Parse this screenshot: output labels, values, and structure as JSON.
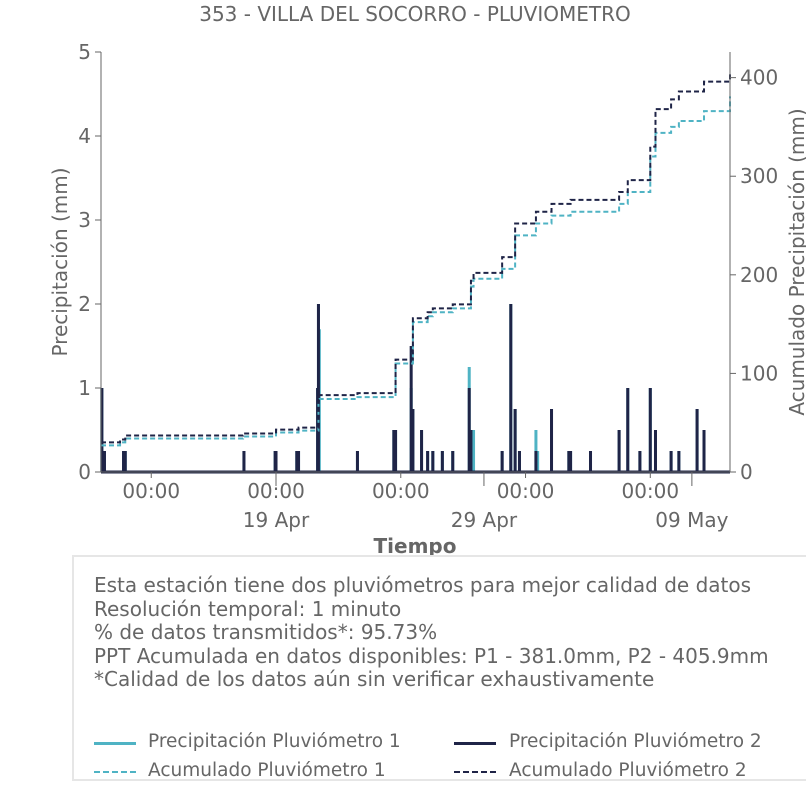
{
  "colors": {
    "p1": "#4fb3c4",
    "p2": "#1f2447",
    "text": "#666666",
    "box_border": "#e6e6e6"
  },
  "chart_data": {
    "type": "line",
    "title": "353 - VILLA DEL SOCORRO - PLUVIOMETRO",
    "xlabel": "Tiempo",
    "ylabel": "Precipitación (mm)",
    "y2label": "Acumulado Precipitación (mm)",
    "ylim": [
      0,
      5
    ],
    "y2lim": [
      0,
      426
    ],
    "xlim": [
      "2025-04-10 14:00",
      "2025-05-10 20:00"
    ],
    "yticks": [
      "0",
      "1",
      "2",
      "3",
      "4",
      "5"
    ],
    "y2ticks": [
      "0",
      "100",
      "200",
      "300",
      "400"
    ],
    "xticks_major": [
      "00:00",
      "00:00",
      "00:00",
      "00:00",
      "00:00"
    ],
    "xticks_major_dates": [
      "2025-04-13 00:00",
      "2025-04-19 00:00",
      "2025-04-25 00:00",
      "2025-05-01 00:00",
      "2025-05-07 00:00"
    ],
    "xticks_minor": [
      "19 Apr",
      "29 Apr",
      "09 May"
    ],
    "xticks_minor_dates": [
      "2025-04-19 00:00",
      "2025-04-29 00:00",
      "2025-05-09 00:00"
    ],
    "grid": false,
    "legend": "bottom",
    "series": [
      {
        "name": "Precipitación Pluviómetro 1",
        "axis": "left",
        "style": "solid",
        "points": [
          [
            "2025-04-10 15:00",
            1.0
          ],
          [
            "2025-04-10 18:00",
            0.25
          ],
          [
            "2025-04-11 16:00",
            0.25
          ],
          [
            "2025-04-11 18:00",
            0.25
          ],
          [
            "2025-04-17 11:00",
            0.25
          ],
          [
            "2025-04-18 23:00",
            0.25
          ],
          [
            "2025-04-19 00:00",
            0.25
          ],
          [
            "2025-04-20 00:00",
            0.25
          ],
          [
            "2025-04-20 02:00",
            0.25
          ],
          [
            "2025-04-21 00:00",
            1.0
          ],
          [
            "2025-04-21 01:00",
            2.0
          ],
          [
            "2025-04-21 02:00",
            1.7
          ],
          [
            "2025-04-22 22:00",
            0.25
          ],
          [
            "2025-04-24 16:00",
            0.5
          ],
          [
            "2025-04-24 18:00",
            0.5
          ],
          [
            "2025-04-25 12:00",
            1.0
          ],
          [
            "2025-04-25 14:00",
            0.75
          ],
          [
            "2025-04-26 00:00",
            0.5
          ],
          [
            "2025-04-26 07:00",
            0.25
          ],
          [
            "2025-04-26 13:00",
            0.25
          ],
          [
            "2025-04-27 00:00",
            0.25
          ],
          [
            "2025-04-27 12:00",
            0.25
          ],
          [
            "2025-04-28 07:00",
            1.25
          ],
          [
            "2025-04-28 09:00",
            0.5
          ],
          [
            "2025-04-28 12:00",
            0.5
          ],
          [
            "2025-04-29 21:00",
            0.25
          ],
          [
            "2025-04-30 07:00",
            2.0
          ],
          [
            "2025-04-30 12:00",
            0.75
          ],
          [
            "2025-04-30 17:00",
            0.25
          ],
          [
            "2025-05-01 12:00",
            0.5
          ],
          [
            "2025-05-01 14:00",
            0.25
          ],
          [
            "2025-05-02 06:00",
            0.75
          ],
          [
            "2025-05-03 02:00",
            0.25
          ],
          [
            "2025-05-03 04:00",
            0.25
          ],
          [
            "2025-05-04 03:00",
            0.25
          ],
          [
            "2025-05-05 12:00",
            0.5
          ],
          [
            "2025-05-05 22:00",
            1.0
          ],
          [
            "2025-05-06 12:00",
            0.25
          ],
          [
            "2025-05-07 00:00",
            1.0
          ],
          [
            "2025-05-07 06:00",
            0.5
          ],
          [
            "2025-05-08 00:00",
            0.25
          ],
          [
            "2025-05-08 09:00",
            0.25
          ],
          [
            "2025-05-09 06:00",
            0.75
          ],
          [
            "2025-05-09 14:00",
            0.5
          ]
        ]
      },
      {
        "name": "Precipitación Pluviómetro 2",
        "axis": "left",
        "style": "solid",
        "points": [
          [
            "2025-04-10 15:00",
            1.0
          ],
          [
            "2025-04-10 18:00",
            0.25
          ],
          [
            "2025-04-11 16:00",
            0.25
          ],
          [
            "2025-04-11 18:00",
            0.25
          ],
          [
            "2025-04-17 11:00",
            0.25
          ],
          [
            "2025-04-18 23:00",
            0.25
          ],
          [
            "2025-04-19 00:00",
            0.25
          ],
          [
            "2025-04-20 00:00",
            0.25
          ],
          [
            "2025-04-20 02:00",
            0.25
          ],
          [
            "2025-04-21 00:00",
            1.0
          ],
          [
            "2025-04-21 01:00",
            2.0
          ],
          [
            "2025-04-22 22:00",
            0.25
          ],
          [
            "2025-04-24 16:00",
            0.5
          ],
          [
            "2025-04-24 18:00",
            0.5
          ],
          [
            "2025-04-25 12:00",
            1.5
          ],
          [
            "2025-04-25 14:00",
            0.75
          ],
          [
            "2025-04-26 00:00",
            0.5
          ],
          [
            "2025-04-26 07:00",
            0.25
          ],
          [
            "2025-04-26 13:00",
            0.25
          ],
          [
            "2025-04-27 00:00",
            0.25
          ],
          [
            "2025-04-27 12:00",
            0.25
          ],
          [
            "2025-04-28 07:00",
            1.0
          ],
          [
            "2025-04-28 09:00",
            0.5
          ],
          [
            "2025-04-29 21:00",
            0.25
          ],
          [
            "2025-04-30 07:00",
            2.0
          ],
          [
            "2025-04-30 12:00",
            0.75
          ],
          [
            "2025-04-30 17:00",
            0.25
          ],
          [
            "2025-05-01 12:00",
            0.25
          ],
          [
            "2025-05-02 06:00",
            0.75
          ],
          [
            "2025-05-03 02:00",
            0.25
          ],
          [
            "2025-05-03 04:00",
            0.25
          ],
          [
            "2025-05-04 03:00",
            0.25
          ],
          [
            "2025-05-05 12:00",
            0.5
          ],
          [
            "2025-05-05 22:00",
            1.0
          ],
          [
            "2025-05-06 12:00",
            0.25
          ],
          [
            "2025-05-07 00:00",
            1.0
          ],
          [
            "2025-05-07 06:00",
            0.5
          ],
          [
            "2025-05-08 00:00",
            0.25
          ],
          [
            "2025-05-08 09:00",
            0.25
          ],
          [
            "2025-05-09 06:00",
            0.75
          ],
          [
            "2025-05-09 14:00",
            0.5
          ]
        ]
      },
      {
        "name": "Acumulado Pluviómetro 1",
        "axis": "right",
        "style": "dashed",
        "points": [
          [
            "2025-04-10 14:00",
            27
          ],
          [
            "2025-04-11 12:00",
            30
          ],
          [
            "2025-04-11 18:00",
            34
          ],
          [
            "2025-04-17 10:00",
            36
          ],
          [
            "2025-04-19 00:00",
            40
          ],
          [
            "2025-04-20 02:00",
            42
          ],
          [
            "2025-04-21 01:00",
            74
          ],
          [
            "2025-04-22 22:00",
            76
          ],
          [
            "2025-04-24 18:00",
            110
          ],
          [
            "2025-04-25 14:00",
            152
          ],
          [
            "2025-04-26 07:00",
            158
          ],
          [
            "2025-04-26 13:00",
            162
          ],
          [
            "2025-04-27 12:00",
            166
          ],
          [
            "2025-04-28 09:00",
            188
          ],
          [
            "2025-04-28 12:00",
            196
          ],
          [
            "2025-04-29 21:00",
            206
          ],
          [
            "2025-04-30 12:00",
            240
          ],
          [
            "2025-05-01 12:00",
            252
          ],
          [
            "2025-05-02 06:00",
            260
          ],
          [
            "2025-05-03 04:00",
            264
          ],
          [
            "2025-05-05 12:00",
            272
          ],
          [
            "2025-05-05 22:00",
            284
          ],
          [
            "2025-05-07 00:00",
            320
          ],
          [
            "2025-05-07 06:00",
            344
          ],
          [
            "2025-05-08 00:00",
            350
          ],
          [
            "2025-05-08 09:00",
            356
          ],
          [
            "2025-05-09 14:00",
            366
          ],
          [
            "2025-05-10 20:00",
            381
          ]
        ]
      },
      {
        "name": "Acumulado Pluviómetro 2",
        "axis": "right",
        "style": "dashed",
        "points": [
          [
            "2025-04-10 14:00",
            30
          ],
          [
            "2025-04-11 12:00",
            33
          ],
          [
            "2025-04-11 18:00",
            37
          ],
          [
            "2025-04-17 10:00",
            39
          ],
          [
            "2025-04-19 00:00",
            43
          ],
          [
            "2025-04-20 02:00",
            45
          ],
          [
            "2025-04-21 01:00",
            78
          ],
          [
            "2025-04-22 22:00",
            80
          ],
          [
            "2025-04-24 18:00",
            114
          ],
          [
            "2025-04-25 14:00",
            156
          ],
          [
            "2025-04-26 07:00",
            162
          ],
          [
            "2025-04-26 13:00",
            166
          ],
          [
            "2025-04-27 12:00",
            170
          ],
          [
            "2025-04-28 09:00",
            194
          ],
          [
            "2025-04-28 12:00",
            202
          ],
          [
            "2025-04-29 21:00",
            218
          ],
          [
            "2025-04-30 12:00",
            252
          ],
          [
            "2025-05-01 12:00",
            264
          ],
          [
            "2025-05-02 06:00",
            272
          ],
          [
            "2025-05-03 04:00",
            276
          ],
          [
            "2025-05-05 12:00",
            284
          ],
          [
            "2025-05-05 22:00",
            296
          ],
          [
            "2025-05-07 00:00",
            330
          ],
          [
            "2025-05-07 06:00",
            368
          ],
          [
            "2025-05-08 00:00",
            378
          ],
          [
            "2025-05-08 09:00",
            386
          ],
          [
            "2025-05-09 14:00",
            396
          ],
          [
            "2025-05-10 20:00",
            405.9
          ]
        ]
      }
    ]
  },
  "info": {
    "line1": "Esta estación tiene dos pluviómetros para mejor calidad de datos",
    "line2": "Resolución temporal: 1 minuto",
    "line3": "% de datos transmitidos*: 95.73%",
    "line4": "PPT Acumulada en datos disponibles: P1 - 381.0mm, P2 - 405.9mm",
    "line5": "*Calidad de los datos aún sin verificar exhaustivamente"
  },
  "legend": {
    "p1_precip": "Precipitación Pluviómetro 1",
    "p2_precip": "Precipitación Pluviómetro 2",
    "p1_acum": "Acumulado Pluviómetro 1",
    "p2_acum": "Acumulado Pluviómetro 2"
  }
}
